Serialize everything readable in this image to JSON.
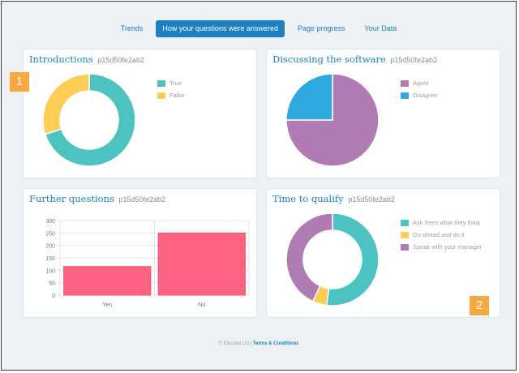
{
  "nav": {
    "tabs": [
      {
        "label": "Trends",
        "active": false
      },
      {
        "label": "How your questions were answered",
        "active": true
      },
      {
        "label": "Page progress",
        "active": false
      },
      {
        "label": "Your Data",
        "active": false
      }
    ]
  },
  "cards": {
    "introductions": {
      "title": "Introductions",
      "id": "p15d50fe2ab2",
      "badge": "1"
    },
    "discussing": {
      "title": "Discussing the software",
      "id": "p15d50fe2ab2"
    },
    "further": {
      "title": "Further questions",
      "id": "p15d50fe2ab2"
    },
    "qualify": {
      "title": "Time to qualify",
      "id": "p15d50fe2ab2",
      "badge": "2"
    }
  },
  "footer": {
    "copyright": "© Elucidat Ltd |",
    "terms": "Terms & Conditions"
  },
  "chart_data": [
    {
      "type": "pie",
      "variant": "doughnut",
      "title": "Introductions",
      "labels": [
        "True",
        "False"
      ],
      "values": [
        70,
        30
      ],
      "colors": [
        "#4cc3c0",
        "#ffcd56"
      ],
      "legend": "right"
    },
    {
      "type": "pie",
      "title": "Discussing the software",
      "labels": [
        "Agree",
        "Disagree"
      ],
      "values": [
        75,
        25
      ],
      "colors": [
        "#b07ab3",
        "#2eaae1"
      ],
      "legend": "right"
    },
    {
      "type": "bar",
      "title": "Further questions",
      "categories": [
        "Yes",
        "No"
      ],
      "values": [
        115,
        250
      ],
      "color": "#ff6384",
      "ylim": [
        0,
        300
      ],
      "yticks": [
        0,
        50,
        100,
        150,
        200,
        250,
        300
      ],
      "grid": true
    },
    {
      "type": "pie",
      "variant": "doughnut",
      "title": "Time to qualify",
      "labels": [
        "Ask them what they think",
        "Go ahead and do it",
        "Speak with your manager"
      ],
      "values": [
        52,
        5,
        43
      ],
      "colors": [
        "#4cc3c0",
        "#ffcd56",
        "#b07ab3"
      ],
      "legend": "right"
    }
  ]
}
